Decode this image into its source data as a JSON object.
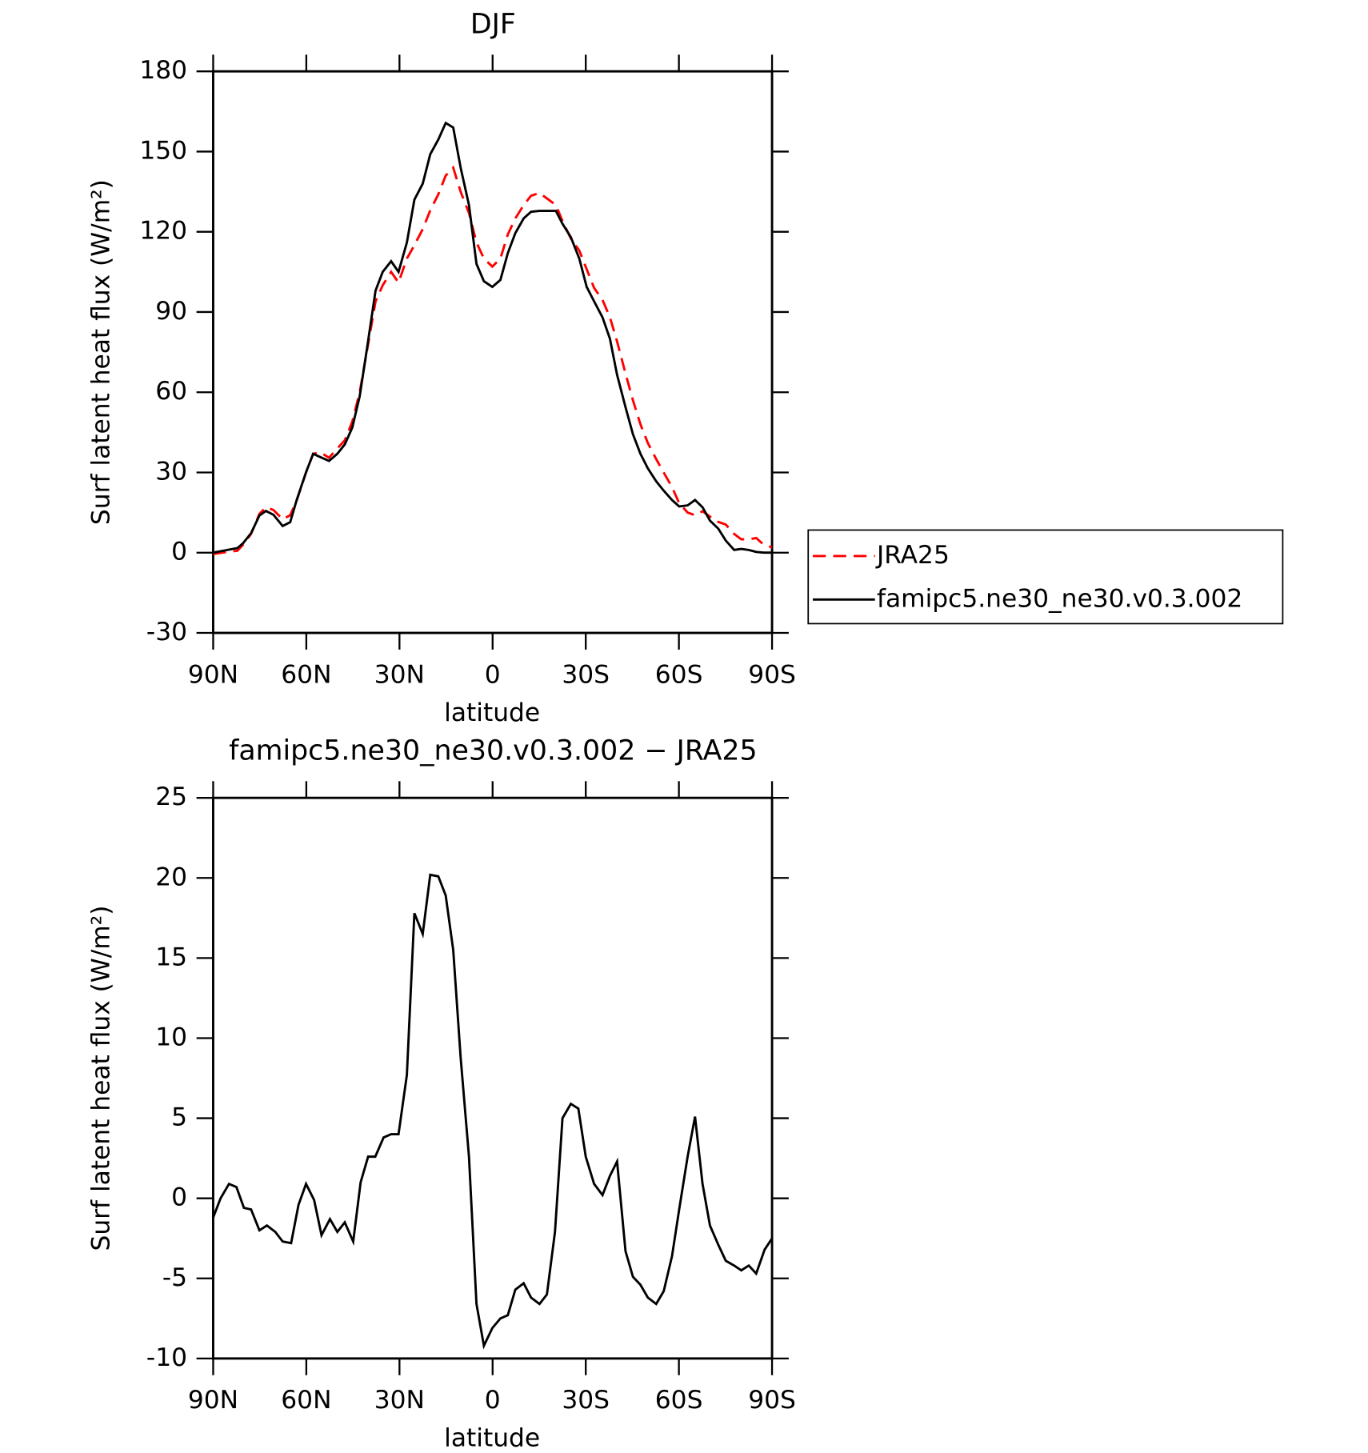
{
  "chart_data": [
    {
      "type": "line",
      "title": "DJF",
      "xlabel": "latitude",
      "ylabel": "Surf latent heat flux (W/m²)",
      "xlim": [
        90,
        -90
      ],
      "xticks": [
        {
          "value": 90,
          "label": "90N"
        },
        {
          "value": 60,
          "label": "60N"
        },
        {
          "value": 30,
          "label": "30N"
        },
        0,
        {
          "value": -30,
          "label": "30S"
        },
        {
          "value": -60,
          "label": "60S"
        },
        {
          "value": -90,
          "label": "90S"
        }
      ],
      "ylim": [
        -30,
        180
      ],
      "yticks": [
        -30,
        0,
        30,
        60,
        90,
        120,
        150,
        180
      ],
      "legend": "right",
      "series": [
        {
          "name": "JRA25",
          "color": "#ff0000",
          "dash": true,
          "x": [
            90,
            85.5,
            82.2,
            80.4,
            77.8,
            75.1,
            73,
            70.6,
            67.6,
            65.2,
            63.1,
            60.1,
            57.8,
            55.4,
            52.7,
            50,
            47.6,
            45.2,
            42.8,
            40.4,
            37.7,
            35.4,
            32.7,
            30.3,
            27.6,
            25.2,
            22.5,
            20.1,
            17.5,
            15.1,
            12.7,
            10.3,
            7.6,
            5.2,
            2.8,
            0.1,
            -2.5,
            -4.9,
            -7.3,
            -10,
            -12.4,
            -15.1,
            -20.4,
            -22.5,
            -25.2,
            -27.9,
            -30.3,
            -32.7,
            -35.4,
            -37.8,
            -40.1,
            -42.8,
            -45.2,
            -47.6,
            -50,
            -52.7,
            -55.1,
            -57.8,
            -60.1,
            -62.8,
            -65.2,
            -67.6,
            -70,
            -72.7,
            -75.1,
            -77.8,
            -80.1,
            -82.5,
            -84.9,
            -87.3,
            -90
          ],
          "values": [
            -0.5,
            0.3,
            0.7,
            3,
            7,
            14.5,
            17,
            16,
            12.5,
            14,
            19.5,
            30,
            37,
            37.5,
            35.5,
            39,
            42,
            49,
            60,
            76,
            94,
            100,
            105,
            101,
            110,
            115,
            121,
            128,
            134,
            141,
            144,
            135,
            127,
            116,
            110,
            107,
            110,
            119,
            125,
            130,
            133.5,
            134.5,
            130,
            124,
            117.5,
            113,
            106,
            99,
            94.5,
            88,
            79,
            67,
            57,
            48,
            41,
            35,
            30,
            24.5,
            18.5,
            15,
            14,
            15.5,
            13.5,
            11.5,
            10.5,
            7,
            5,
            5,
            5.5,
            3,
            2
          ]
        },
        {
          "name": "famipc5.ne30_ne30.v0.3.002",
          "color": "#000000",
          "dash": false,
          "x": [
            90,
            85.5,
            82.2,
            80.4,
            77.8,
            75.1,
            73,
            70.6,
            67.6,
            65.2,
            63.1,
            60.1,
            57.8,
            55.4,
            52.7,
            50,
            47.6,
            45.2,
            42.8,
            40.4,
            37.7,
            35.4,
            32.7,
            30.3,
            27.6,
            25.2,
            22.5,
            20.1,
            17.5,
            15.1,
            12.7,
            10.3,
            7.6,
            5.2,
            2.8,
            0.1,
            -2.5,
            -4.9,
            -7.3,
            -10,
            -12.4,
            -15.1,
            -20.4,
            -22.5,
            -25.2,
            -27.9,
            -30.3,
            -32.7,
            -35.4,
            -37.8,
            -40.1,
            -42.8,
            -45.2,
            -47.6,
            -50,
            -52.7,
            -55.1,
            -57.8,
            -60.1,
            -62.8,
            -65.2,
            -67.6,
            -70,
            -72.7,
            -75.1,
            -77.8,
            -80.1,
            -82.5,
            -84.9,
            -87.3,
            -90
          ],
          "values": [
            0,
            1,
            1.7,
            3.5,
            7.3,
            13.9,
            15.6,
            14.2,
            10,
            11.4,
            19.7,
            30.1,
            37,
            35.7,
            34.3,
            37,
            40.5,
            46.8,
            58.5,
            76.9,
            98,
            105,
            109,
            105,
            116,
            132,
            138,
            149,
            154.5,
            160.7,
            159,
            144,
            130,
            108,
            101.5,
            99.4,
            102,
            112,
            119.5,
            125,
            127.5,
            127.8,
            127.8,
            123,
            118,
            110,
            99.4,
            94,
            88,
            80,
            66.5,
            54.4,
            44.3,
            37,
            31.5,
            26.7,
            23.2,
            19.7,
            17.3,
            17.7,
            19.7,
            17,
            12,
            9,
            4.5,
            1,
            1.4,
            1,
            0.3,
            0,
            0
          ]
        }
      ]
    },
    {
      "type": "line",
      "title": "famipc5.ne30_ne30.v0.3.002 − JRA25",
      "xlabel": "latitude",
      "ylabel": "Surf latent heat flux (W/m²)",
      "xlim": [
        90,
        -90
      ],
      "xticks": [
        {
          "value": 90,
          "label": "90N"
        },
        {
          "value": 60,
          "label": "60N"
        },
        {
          "value": 30,
          "label": "30N"
        },
        0,
        {
          "value": -30,
          "label": "30S"
        },
        {
          "value": -60,
          "label": "60S"
        },
        {
          "value": -90,
          "label": "90S"
        }
      ],
      "ylim": [
        -10,
        25
      ],
      "yticks": [
        -10,
        -5,
        0,
        5,
        10,
        15,
        20,
        25
      ],
      "series": [
        {
          "color": "#000000",
          "dash": false,
          "x": [
            90,
            87.6,
            84.9,
            82.5,
            80.1,
            77.8,
            75.1,
            72.7,
            70,
            67.6,
            64.9,
            62.5,
            60.1,
            57.5,
            55.1,
            52.4,
            50,
            47.6,
            44.9,
            42.5,
            40.1,
            37.8,
            35.1,
            32.7,
            30.3,
            27.6,
            25.2,
            22.5,
            20.1,
            17.5,
            15.1,
            12.7,
            10.3,
            7.6,
            5.2,
            2.8,
            0.1,
            -2.5,
            -4.9,
            -7.3,
            -10,
            -12.4,
            -15.1,
            -17.5,
            -20.1,
            -22.5,
            -25.2,
            -27.6,
            -30,
            -32.7,
            -35.4,
            -37.8,
            -40.1,
            -42.8,
            -45.2,
            -47.6,
            -50,
            -52.7,
            -55.1,
            -57.8,
            -60.1,
            -62.8,
            -65.2,
            -67.6,
            -70,
            -72.7,
            -75.1,
            -77.8,
            -80.1,
            -82.5,
            -84.9,
            -87.6,
            -90
          ],
          "values": [
            -1.2,
            0,
            0.9,
            0.7,
            -0.6,
            -0.7,
            -2,
            -1.7,
            -2.1,
            -2.7,
            -2.8,
            -0.4,
            0.9,
            -0.1,
            -2.3,
            -1.3,
            -2.1,
            -1.5,
            -2.7,
            1,
            2.6,
            2.6,
            3.8,
            4,
            4,
            7.7,
            17.8,
            16.5,
            20.2,
            20.1,
            18.9,
            15.5,
            8.8,
            2.6,
            -6.6,
            -9.2,
            -8.1,
            -7.5,
            -7.3,
            -5.7,
            -5.3,
            -6.2,
            -6.6,
            -6,
            -2.1,
            5,
            5.9,
            5.6,
            2.6,
            0.9,
            0.2,
            1.4,
            2.3,
            -3.3,
            -4.9,
            -5.4,
            -6.2,
            -6.6,
            -5.8,
            -3.6,
            -0.7,
            2.6,
            5.1,
            0.9,
            -1.7,
            -2.9,
            -3.9,
            -4.2,
            -4.5,
            -4.2,
            -4.7,
            -3.2,
            -2.5
          ]
        }
      ]
    }
  ]
}
